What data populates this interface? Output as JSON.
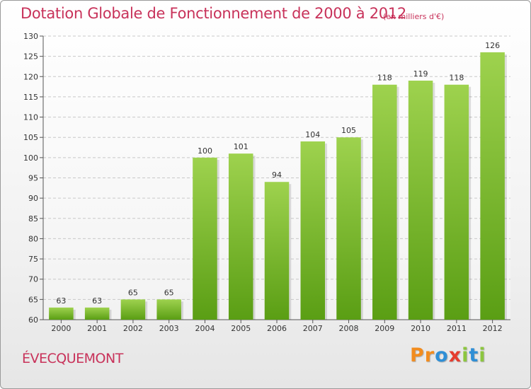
{
  "header": {
    "title": "Dotation Globale de Fonctionnement de 2000 à 2012",
    "subtitle": "(en milliers d'€)"
  },
  "footer": {
    "commune": "ÉVECQUEMONT",
    "logo_letters": [
      "P",
      "r",
      "o",
      "x",
      "i",
      "t",
      "i"
    ]
  },
  "colors": {
    "bar_top": "#9ed24e",
    "bar_bottom": "#5a9e14",
    "title": "#c8325a",
    "logo": [
      "#f28c1e",
      "#f28c1e",
      "#2f8fd6",
      "#e63c2e",
      "#8cc63f",
      "#2f8fd6",
      "#8cc63f"
    ]
  },
  "chart_data": {
    "type": "bar",
    "categories": [
      "2000",
      "2001",
      "2002",
      "2003",
      "2004",
      "2005",
      "2006",
      "2007",
      "2008",
      "2009",
      "2010",
      "2011",
      "2012"
    ],
    "values": [
      63,
      63,
      65,
      65,
      100,
      101,
      94,
      104,
      105,
      118,
      119,
      118,
      126
    ],
    "ylim": [
      60,
      130
    ],
    "yticks": [
      60,
      65,
      70,
      75,
      80,
      85,
      90,
      95,
      100,
      105,
      110,
      115,
      120,
      125,
      130
    ],
    "grid": true,
    "title": "Dotation Globale de Fonctionnement de 2000 à 2012"
  }
}
